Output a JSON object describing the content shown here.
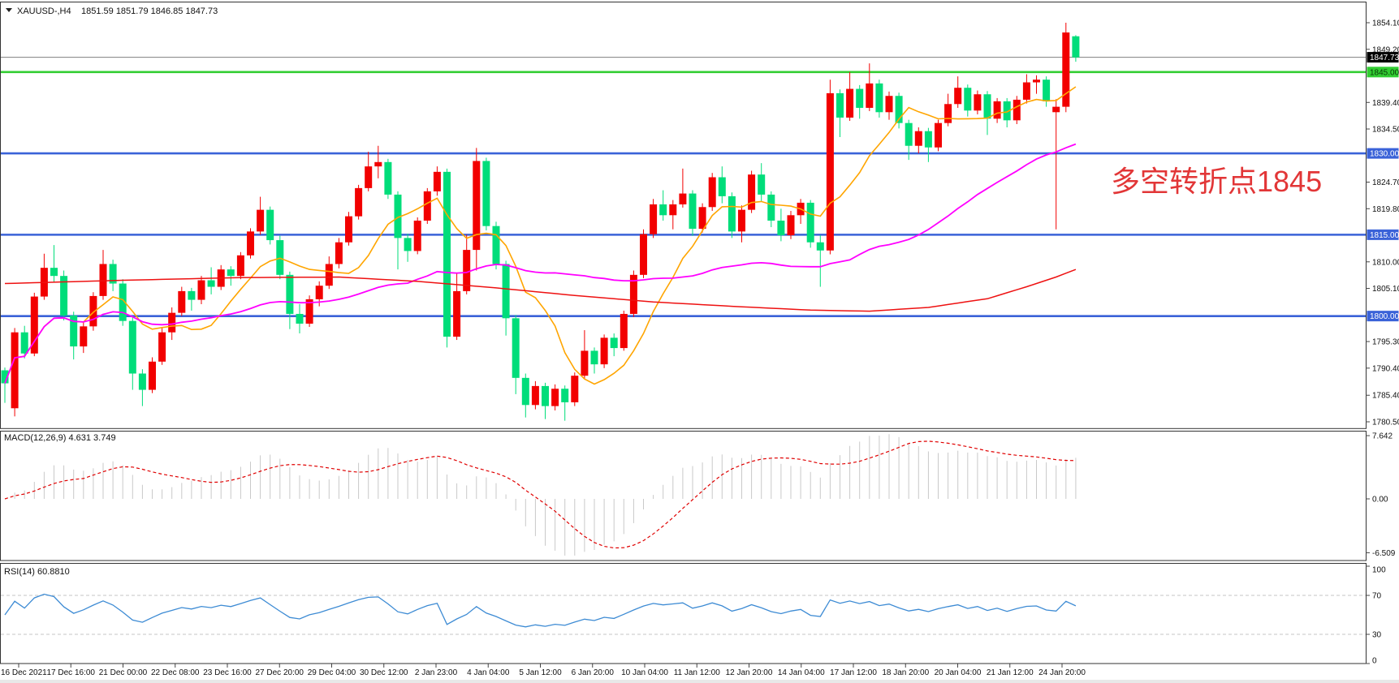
{
  "window": {
    "dropdown_icon": "triangle-down",
    "symbol_label": "XAUUSD-,H4",
    "ohlc_label": "1851.59 1851.79 1846.85 1847.73"
  },
  "annotation": {
    "text": "多空转折点1845",
    "color": "#e23637"
  },
  "indicators": {
    "macd_label": "MACD(12,26,9) 4.631 3.749",
    "rsi_label": "RSI(14) 60.8810"
  },
  "colors": {
    "candle_up": "#f20000",
    "candle_down": "#00dd7a",
    "ma_fast": "#ffa500",
    "ma_mid": "#ff00ff",
    "ma_slow": "#ee1111",
    "level_blue": "#3a62d8",
    "level_green": "#32cd32",
    "current_price_line": "#808080",
    "macd_bars": "#c9c9c9",
    "macd_signal": "#e00000",
    "rsi_line": "#3d8bd4",
    "badge_current_bg": "#000000",
    "badge_current_fg": "#ffffff"
  },
  "chart_data": {
    "type": "candlestick",
    "symbol": "XAUUSD-",
    "timeframe": "H4",
    "title": "XAUUSD- H4 candlestick chart with MACD and RSI",
    "ylim": [
      1780.5,
      1854.1
    ],
    "current_price": 1847.73,
    "bar_ohlc_display": {
      "open": 1851.59,
      "high": 1851.79,
      "low": 1846.85,
      "close": 1847.73
    },
    "price_axis_ticks": [
      1854.1,
      1849.2,
      1839.4,
      1834.5,
      1824.7,
      1819.8,
      1810.0,
      1805.1,
      1795.3,
      1790.4,
      1785.4,
      1780.5
    ],
    "price_badges": [
      {
        "label": "1847.73",
        "value": 1847.73,
        "bg": "#000000",
        "fg": "#ffffff"
      },
      {
        "label": "1845.00",
        "value": 1845.0,
        "bg": "#32cd32",
        "fg": "#073807"
      },
      {
        "label": "1830.00",
        "value": 1830.0,
        "bg": "#3a62d8",
        "fg": "#ffffff"
      },
      {
        "label": "1815.00",
        "value": 1815.0,
        "bg": "#3a62d8",
        "fg": "#ffffff"
      },
      {
        "label": "1800.00",
        "value": 1800.0,
        "bg": "#3a62d8",
        "fg": "#ffffff"
      }
    ],
    "hlines": [
      {
        "price": 1845.0,
        "color": "#32cd32",
        "width": 2.6
      },
      {
        "price": 1830.0,
        "color": "#3a62d8",
        "width": 2.6
      },
      {
        "price": 1815.0,
        "color": "#3a62d8",
        "width": 2.6
      },
      {
        "price": 1800.0,
        "color": "#3a62d8",
        "width": 2.6
      },
      {
        "price": 1847.73,
        "color": "#808080",
        "width": 1
      }
    ],
    "ma_lines": [
      {
        "name": "ma-fast-orange",
        "type": "sma",
        "period": 9,
        "color": "#ffa500",
        "width": 1.6
      },
      {
        "name": "ma-mid-magenta",
        "type": "sma",
        "period": 42,
        "color": "#ff00ff",
        "width": 1.8
      },
      {
        "name": "ma-slow-red",
        "type": "points",
        "color": "#ee1111",
        "width": 1.5,
        "points": [
          [
            0,
            1806.0
          ],
          [
            12,
            1806.6
          ],
          [
            24,
            1807.1
          ],
          [
            34,
            1807.2
          ],
          [
            42,
            1806.4
          ],
          [
            50,
            1805.2
          ],
          [
            58,
            1803.8
          ],
          [
            66,
            1802.6
          ],
          [
            74,
            1801.8
          ],
          [
            82,
            1801.1
          ],
          [
            88,
            1800.9
          ],
          [
            94,
            1801.6
          ],
          [
            100,
            1803.2
          ],
          [
            104,
            1805.4
          ],
          [
            107,
            1807.2
          ],
          [
            109,
            1808.6
          ]
        ]
      }
    ],
    "macd": {
      "params": [
        12,
        26,
        9
      ],
      "value": 4.631,
      "signal_value": 3.749,
      "axis": [
        {
          "v": 7.642,
          "label": "7.642"
        },
        {
          "v": 0,
          "label": "0.00"
        },
        {
          "v": -6.509,
          "label": "-6.509"
        }
      ]
    },
    "rsi": {
      "period": 14,
      "value": 60.881,
      "axis": [
        {
          "v": 100,
          "label": "100"
        },
        {
          "v": 70,
          "label": "70"
        },
        {
          "v": 30,
          "label": "30"
        },
        {
          "v": 0,
          "label": "0"
        }
      ],
      "dashed_levels": [
        70,
        30
      ]
    },
    "time_labels": [
      "16 Dec 2021",
      "17 Dec 16:00",
      "21 Dec 00:00",
      "22 Dec 08:00",
      "23 Dec 16:00",
      "27 Dec 20:00",
      "29 Dec 04:00",
      "30 Dec 12:00",
      "2 Jan 23:00",
      "4 Jan 04:00",
      "5 Jan 12:00",
      "6 Jan 20:00",
      "10 Jan 04:00",
      "11 Jan 12:00",
      "12 Jan 20:00",
      "14 Jan 04:00",
      "17 Jan 12:00",
      "18 Jan 20:00",
      "20 Jan 04:00",
      "21 Jan 12:00",
      "24 Jan 20:00"
    ],
    "ohlc": [
      [
        1790.0,
        1790.5,
        1784.0,
        1787.6
      ],
      [
        1783.0,
        1797.8,
        1781.5,
        1797.0
      ],
      [
        1797.0,
        1798.2,
        1792.2,
        1793.1
      ],
      [
        1793.1,
        1804.3,
        1792.6,
        1803.6
      ],
      [
        1803.6,
        1811.5,
        1803.0,
        1808.9
      ],
      [
        1808.9,
        1813.1,
        1806.2,
        1807.4
      ],
      [
        1807.4,
        1808.4,
        1799.2,
        1800.1
      ],
      [
        1800.1,
        1800.8,
        1792.0,
        1794.4
      ],
      [
        1794.4,
        1798.9,
        1793.2,
        1798.1
      ],
      [
        1798.1,
        1804.4,
        1797.3,
        1803.7
      ],
      [
        1803.7,
        1812.2,
        1803.0,
        1809.6
      ],
      [
        1809.6,
        1810.4,
        1804.6,
        1806.0
      ],
      [
        1806.0,
        1806.8,
        1798.2,
        1799.1
      ],
      [
        1799.1,
        1799.8,
        1786.4,
        1789.4
      ],
      [
        1789.4,
        1790.2,
        1783.4,
        1786.4
      ],
      [
        1786.4,
        1792.4,
        1785.8,
        1791.6
      ],
      [
        1791.6,
        1797.8,
        1791.0,
        1797.0
      ],
      [
        1797.0,
        1801.6,
        1795.6,
        1800.6
      ],
      [
        1800.6,
        1805.4,
        1800.0,
        1804.6
      ],
      [
        1804.6,
        1805.2,
        1801.0,
        1803.0
      ],
      [
        1803.0,
        1807.4,
        1802.2,
        1806.6
      ],
      [
        1806.6,
        1809.0,
        1804.0,
        1805.4
      ],
      [
        1805.4,
        1809.4,
        1804.8,
        1808.6
      ],
      [
        1808.6,
        1809.2,
        1805.6,
        1807.4
      ],
      [
        1807.4,
        1811.8,
        1806.8,
        1811.2
      ],
      [
        1811.2,
        1816.2,
        1810.6,
        1815.6
      ],
      [
        1815.6,
        1822.0,
        1815.0,
        1819.6
      ],
      [
        1819.6,
        1820.2,
        1813.2,
        1814.0
      ],
      [
        1814.0,
        1814.8,
        1806.8,
        1807.6
      ],
      [
        1807.6,
        1808.2,
        1797.6,
        1800.4
      ],
      [
        1800.4,
        1802.2,
        1796.8,
        1798.6
      ],
      [
        1798.6,
        1803.8,
        1798.0,
        1803.1
      ],
      [
        1803.1,
        1806.4,
        1801.8,
        1805.6
      ],
      [
        1805.6,
        1811.0,
        1805.0,
        1809.6
      ],
      [
        1809.6,
        1814.4,
        1808.8,
        1813.6
      ],
      [
        1813.6,
        1819.2,
        1813.0,
        1818.4
      ],
      [
        1818.4,
        1824.2,
        1817.8,
        1823.6
      ],
      [
        1823.6,
        1830.3,
        1823.0,
        1827.6
      ],
      [
        1827.6,
        1831.4,
        1825.4,
        1828.4
      ],
      [
        1828.4,
        1829.0,
        1821.6,
        1822.4
      ],
      [
        1822.4,
        1823.0,
        1808.6,
        1814.4
      ],
      [
        1814.4,
        1815.2,
        1810.0,
        1812.0
      ],
      [
        1812.0,
        1818.2,
        1811.4,
        1817.6
      ],
      [
        1817.6,
        1823.6,
        1817.0,
        1823.0
      ],
      [
        1823.0,
        1827.6,
        1822.2,
        1826.6
      ],
      [
        1826.6,
        1827.2,
        1794.2,
        1796.2
      ],
      [
        1796.2,
        1808.0,
        1795.6,
        1804.6
      ],
      [
        1804.6,
        1815.0,
        1804.0,
        1812.2
      ],
      [
        1812.2,
        1831.0,
        1808.4,
        1828.6
      ],
      [
        1828.6,
        1829.2,
        1815.8,
        1816.6
      ],
      [
        1816.6,
        1817.4,
        1808.6,
        1809.6
      ],
      [
        1809.6,
        1810.2,
        1796.4,
        1799.6
      ],
      [
        1799.6,
        1800.2,
        1785.6,
        1788.6
      ],
      [
        1788.6,
        1789.4,
        1781.3,
        1783.6
      ],
      [
        1783.6,
        1788.0,
        1782.8,
        1787.1
      ],
      [
        1787.1,
        1787.7,
        1781.0,
        1783.4
      ],
      [
        1783.4,
        1787.4,
        1782.6,
        1786.6
      ],
      [
        1786.6,
        1787.2,
        1780.7,
        1784.1
      ],
      [
        1784.1,
        1789.6,
        1783.4,
        1789.0
      ],
      [
        1789.0,
        1797.4,
        1788.4,
        1793.6
      ],
      [
        1793.6,
        1794.2,
        1789.4,
        1791.1
      ],
      [
        1791.1,
        1796.6,
        1790.4,
        1796.0
      ],
      [
        1796.0,
        1796.8,
        1792.6,
        1794.1
      ],
      [
        1794.1,
        1801.0,
        1793.6,
        1800.4
      ],
      [
        1800.4,
        1808.4,
        1799.8,
        1807.6
      ],
      [
        1807.6,
        1816.0,
        1807.0,
        1815.1
      ],
      [
        1815.1,
        1821.6,
        1814.4,
        1820.6
      ],
      [
        1820.6,
        1823.2,
        1817.6,
        1818.6
      ],
      [
        1818.6,
        1821.4,
        1816.0,
        1820.6
      ],
      [
        1820.6,
        1827.2,
        1820.0,
        1822.6
      ],
      [
        1822.6,
        1823.2,
        1814.8,
        1816.1
      ],
      [
        1816.1,
        1820.8,
        1815.4,
        1820.1
      ],
      [
        1820.1,
        1826.4,
        1819.4,
        1825.6
      ],
      [
        1825.6,
        1827.6,
        1820.8,
        1822.1
      ],
      [
        1822.1,
        1822.8,
        1814.4,
        1815.6
      ],
      [
        1815.6,
        1820.4,
        1813.6,
        1819.6
      ],
      [
        1819.6,
        1826.8,
        1819.0,
        1826.1
      ],
      [
        1826.1,
        1828.2,
        1821.2,
        1822.4
      ],
      [
        1822.4,
        1823.0,
        1816.4,
        1817.6
      ],
      [
        1817.6,
        1819.8,
        1813.8,
        1814.9
      ],
      [
        1814.9,
        1819.4,
        1814.2,
        1818.6
      ],
      [
        1818.6,
        1821.6,
        1817.0,
        1820.9
      ],
      [
        1820.9,
        1821.4,
        1812.6,
        1813.6
      ],
      [
        1813.6,
        1814.9,
        1805.4,
        1812.1
      ],
      [
        1812.1,
        1843.6,
        1811.4,
        1841.1
      ],
      [
        1841.1,
        1841.8,
        1833.0,
        1836.6
      ],
      [
        1836.6,
        1845.0,
        1836.0,
        1841.9
      ],
      [
        1841.9,
        1842.6,
        1836.4,
        1838.4
      ],
      [
        1838.4,
        1846.6,
        1837.8,
        1842.9
      ],
      [
        1842.9,
        1843.6,
        1836.6,
        1837.6
      ],
      [
        1837.6,
        1841.4,
        1836.2,
        1840.6
      ],
      [
        1840.6,
        1841.2,
        1834.6,
        1835.6
      ],
      [
        1835.6,
        1836.2,
        1828.8,
        1831.4
      ],
      [
        1831.4,
        1834.8,
        1830.0,
        1834.1
      ],
      [
        1834.1,
        1834.7,
        1828.4,
        1831.1
      ],
      [
        1831.1,
        1836.2,
        1830.4,
        1835.6
      ],
      [
        1835.6,
        1841.0,
        1835.0,
        1839.1
      ],
      [
        1839.1,
        1844.2,
        1838.4,
        1842.1
      ],
      [
        1842.1,
        1842.7,
        1836.8,
        1837.9
      ],
      [
        1837.9,
        1841.6,
        1837.2,
        1840.9
      ],
      [
        1840.9,
        1841.5,
        1833.4,
        1836.4
      ],
      [
        1836.4,
        1840.2,
        1835.6,
        1839.6
      ],
      [
        1839.6,
        1840.2,
        1834.8,
        1836.1
      ],
      [
        1836.1,
        1840.6,
        1835.4,
        1839.9
      ],
      [
        1839.9,
        1844.6,
        1839.2,
        1843.1
      ],
      [
        1843.1,
        1844.4,
        1841.0,
        1843.6
      ],
      [
        1843.6,
        1844.2,
        1838.6,
        1839.6
      ],
      [
        1837.6,
        1840.0,
        1816.0,
        1838.6
      ],
      [
        1838.6,
        1854.1,
        1837.6,
        1852.3
      ],
      [
        1851.6,
        1851.8,
        1846.9,
        1847.7
      ]
    ]
  }
}
